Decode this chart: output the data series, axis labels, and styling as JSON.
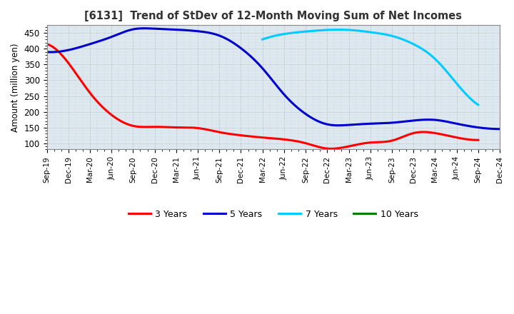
{
  "title": "[6131]  Trend of StDev of 12-Month Moving Sum of Net Incomes",
  "ylabel": "Amount (million yen)",
  "background_color": "#ffffff",
  "plot_bg_color": "#dde8f0",
  "grid_color": "#999999",
  "xlim_start": 0,
  "xlim_end": 63,
  "ylim": [
    80,
    475
  ],
  "yticks": [
    100,
    150,
    200,
    250,
    300,
    350,
    400,
    450
  ],
  "x_labels": [
    "Sep-19",
    "Dec-19",
    "Mar-20",
    "Jun-20",
    "Sep-20",
    "Dec-20",
    "Mar-21",
    "Jun-21",
    "Sep-21",
    "Dec-21",
    "Mar-22",
    "Jun-22",
    "Sep-22",
    "Dec-22",
    "Mar-23",
    "Jun-23",
    "Sep-23",
    "Dec-23",
    "Mar-24",
    "Jun-24",
    "Sep-24",
    "Dec-24"
  ],
  "x_positions": [
    0,
    3,
    6,
    9,
    12,
    15,
    18,
    21,
    24,
    27,
    30,
    33,
    36,
    39,
    42,
    45,
    48,
    51,
    54,
    57,
    60,
    63
  ],
  "series": [
    {
      "label": "3 Years",
      "color": "#ff0000",
      "x": [
        0,
        3,
        6,
        9,
        12,
        15,
        18,
        21,
        24,
        27,
        30,
        33,
        36,
        39,
        42,
        45,
        48,
        51,
        54,
        57,
        60
      ],
      "y": [
        415,
        355,
        260,
        190,
        155,
        152,
        150,
        148,
        135,
        125,
        118,
        112,
        100,
        83,
        90,
        102,
        108,
        132,
        132,
        118,
        110
      ]
    },
    {
      "label": "5 Years",
      "color": "#0000cc",
      "x": [
        0,
        3,
        6,
        9,
        12,
        15,
        18,
        21,
        24,
        27,
        30,
        33,
        36,
        39,
        42,
        45,
        48,
        51,
        54,
        57,
        60,
        63
      ],
      "y": [
        390,
        396,
        415,
        438,
        462,
        464,
        461,
        456,
        442,
        402,
        338,
        255,
        193,
        160,
        158,
        162,
        165,
        172,
        174,
        162,
        150,
        145
      ]
    },
    {
      "label": "7 Years",
      "color": "#00ccff",
      "x": [
        30,
        33,
        36,
        39,
        42,
        45,
        48,
        51,
        54,
        57,
        60
      ],
      "y": [
        430,
        447,
        455,
        460,
        460,
        453,
        441,
        415,
        368,
        290,
        222
      ]
    },
    {
      "label": "10 Years",
      "color": "#008000",
      "x": [],
      "y": []
    }
  ],
  "legend_colors": [
    "#ff0000",
    "#0000cc",
    "#00ccff",
    "#008000"
  ],
  "legend_labels": [
    "3 Years",
    "5 Years",
    "7 Years",
    "10 Years"
  ]
}
